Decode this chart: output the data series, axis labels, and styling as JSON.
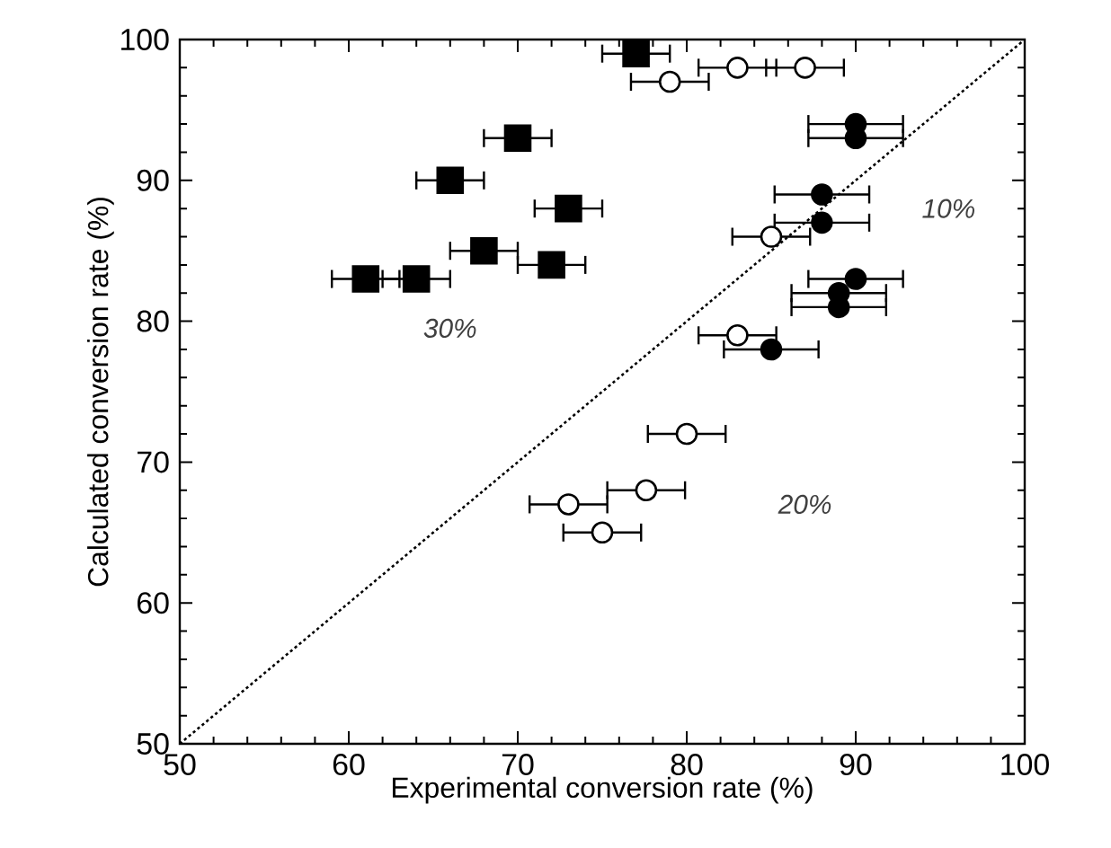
{
  "chart_data": {
    "type": "scatter",
    "xlabel": "Experimental conversion rate (%)",
    "ylabel": "Calculated conversion rate (%)",
    "xlim": [
      50,
      100
    ],
    "ylim": [
      50,
      100
    ],
    "xticks": [
      50,
      60,
      70,
      80,
      90,
      100
    ],
    "yticks": [
      50,
      60,
      70,
      80,
      90,
      100
    ],
    "grid": false,
    "annotations": [
      "10%",
      "20%",
      "30%"
    ],
    "series": [
      {
        "type": "line",
        "x": [
          50,
          100
        ],
        "values": [
          50,
          100
        ],
        "color": "#000000",
        "line_style": "dotted",
        "marker": "none"
      },
      {
        "x": [
          77,
          70,
          66,
          73,
          68,
          72,
          61,
          64
        ],
        "values": [
          99,
          93,
          90,
          88,
          85,
          84,
          83,
          83
        ],
        "color": "#000000",
        "marker": "square",
        "xerrors": [
          2,
          2,
          2,
          2,
          2,
          2,
          2,
          2
        ]
      },
      {
        "x": [
          83,
          87,
          79,
          85,
          83,
          80,
          77.6,
          73,
          75
        ],
        "values": [
          98,
          98,
          97,
          86,
          79,
          72,
          68,
          67,
          65
        ],
        "color": "#ffffff",
        "marker": "circle",
        "xerrors": [
          2.3,
          2.3,
          2.3,
          2.3,
          2.3,
          2.3,
          2.3,
          2.3,
          2.3
        ]
      },
      {
        "x": [
          90,
          90,
          88,
          88,
          90,
          89,
          89,
          85
        ],
        "values": [
          94,
          93,
          89,
          87,
          83,
          82,
          81,
          78
        ],
        "color": "#000000",
        "marker": "circle",
        "xerrors": [
          2.8,
          2.8,
          2.8,
          2.8,
          2.8,
          2.8,
          2.8,
          2.8
        ]
      }
    ]
  }
}
